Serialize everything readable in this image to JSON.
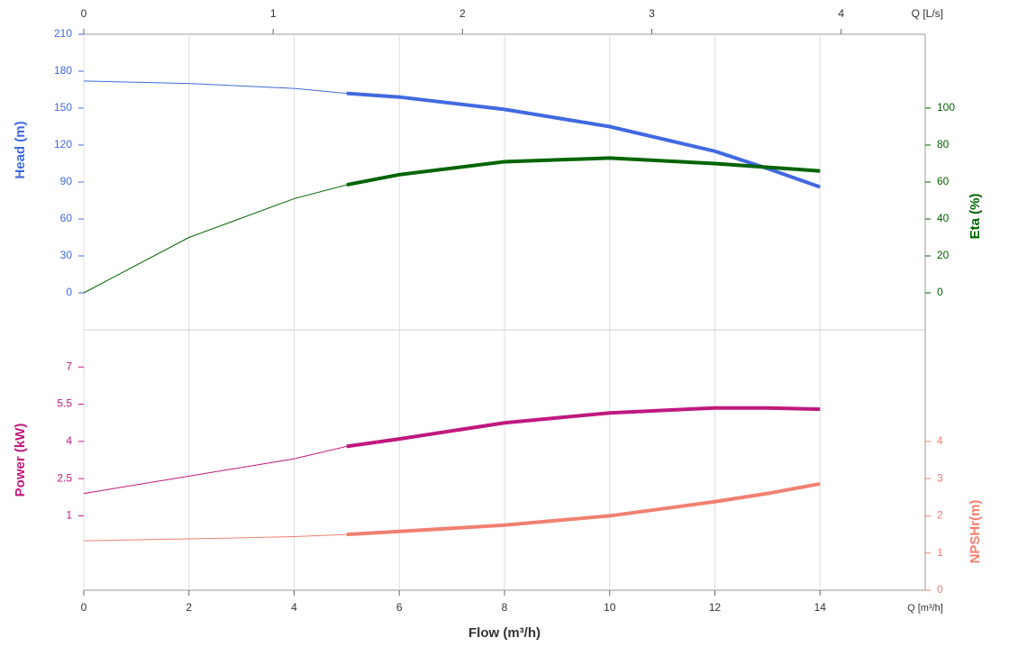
{
  "chart_data": [
    {
      "type": "line",
      "x2label": "Q [L/s]",
      "x2lim": [
        0,
        4.444
      ],
      "x2ticks": [
        0,
        1,
        2,
        3,
        4
      ],
      "xlim": [
        0,
        16
      ],
      "xticks": [
        0,
        2,
        4,
        6,
        8,
        10,
        12,
        14
      ],
      "ylabel": "Head (m)",
      "ylim": [
        0,
        210
      ],
      "yticks": [
        0,
        30,
        60,
        90,
        120,
        150,
        180,
        210
      ],
      "y2label": "Eta (%)",
      "y2lim": [
        0,
        140
      ],
      "y2ticks": [
        0,
        20,
        40,
        60,
        80,
        100
      ],
      "operating_range": [
        5,
        14
      ],
      "x": [
        0,
        2,
        4,
        5,
        6,
        8,
        10,
        12,
        13,
        14
      ],
      "series": [
        {
          "color": "#4169e1",
          "values": [
            172,
            170,
            166,
            162,
            159,
            149,
            135,
            115,
            101,
            86
          ]
        },
        {
          "color": "#006400",
          "axis": "y2",
          "values": [
            0,
            30,
            51,
            58.5,
            64,
            71,
            73,
            70,
            68,
            66
          ]
        }
      ]
    },
    {
      "type": "line",
      "xlabel": "Flow (m³/h)",
      "xunit": "Q [m³/h]",
      "xlim": [
        0,
        16
      ],
      "xticks": [
        0,
        2,
        4,
        6,
        8,
        10,
        12,
        14
      ],
      "ylabel": "Power (kW)",
      "ylim": [
        -2,
        8.5
      ],
      "yticks": [
        1,
        2.5,
        4,
        5.5,
        7
      ],
      "y2label": "NPSHr(m)",
      "y2lim": [
        0,
        7
      ],
      "y2ticks": [
        0,
        1,
        2,
        3,
        4
      ],
      "operating_range": [
        5,
        14
      ],
      "x": [
        0,
        2,
        4,
        5,
        6,
        8,
        10,
        12,
        13,
        14
      ],
      "series": [
        {
          "color": "#c0187e",
          "values": [
            1.9,
            2.6,
            3.3,
            3.8,
            4.1,
            4.75,
            5.15,
            5.35,
            5.35,
            5.3
          ]
        },
        {
          "color": "#f08070",
          "axis": "y2",
          "values": [
            1.33,
            1.38,
            1.44,
            1.5,
            1.58,
            1.75,
            2.0,
            2.38,
            2.6,
            2.86
          ]
        }
      ]
    }
  ]
}
